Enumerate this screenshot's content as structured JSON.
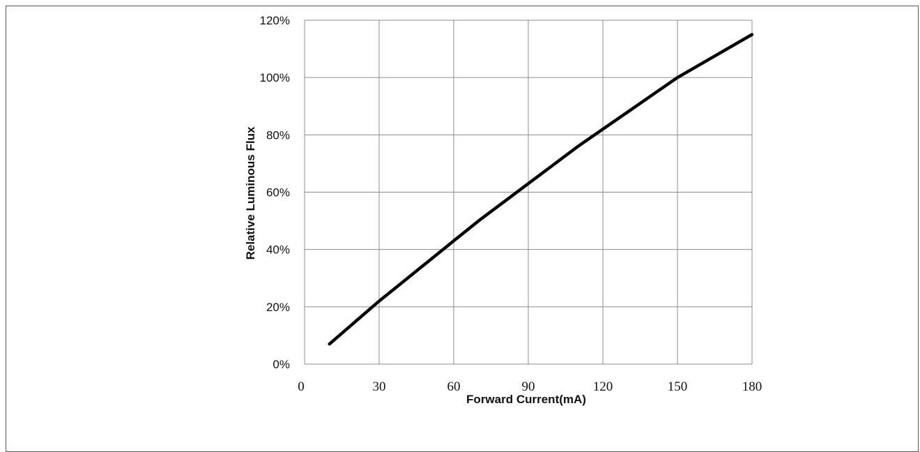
{
  "chart_data": {
    "type": "line",
    "title": "",
    "xlabel": "Forward Current(mA)",
    "ylabel": "Relative Luminous Flux",
    "xlim": [
      0,
      180
    ],
    "ylim": [
      0,
      1.2
    ],
    "x_ticks": [
      0,
      30,
      60,
      90,
      120,
      150,
      180
    ],
    "x_tick_labels": [
      "0",
      "30",
      "60",
      "90",
      "120",
      "150",
      "180"
    ],
    "y_ticks": [
      0,
      0.2,
      0.4,
      0.6,
      0.8,
      1.0,
      1.2
    ],
    "y_tick_labels": [
      "0%",
      "20%",
      "40%",
      "60%",
      "80%",
      "100%",
      "120%"
    ],
    "grid": true,
    "legend": "none",
    "series": [
      {
        "color": "#000000",
        "x": [
          10,
          20,
          30,
          40,
          50,
          60,
          70,
          80,
          90,
          100,
          110,
          120,
          130,
          140,
          150,
          160,
          170,
          180
        ],
        "y": [
          0.07,
          0.145,
          0.22,
          0.29,
          0.36,
          0.43,
          0.5,
          0.565,
          0.63,
          0.695,
          0.76,
          0.82,
          0.88,
          0.94,
          1.0,
          1.05,
          1.1,
          1.15
        ]
      }
    ]
  }
}
